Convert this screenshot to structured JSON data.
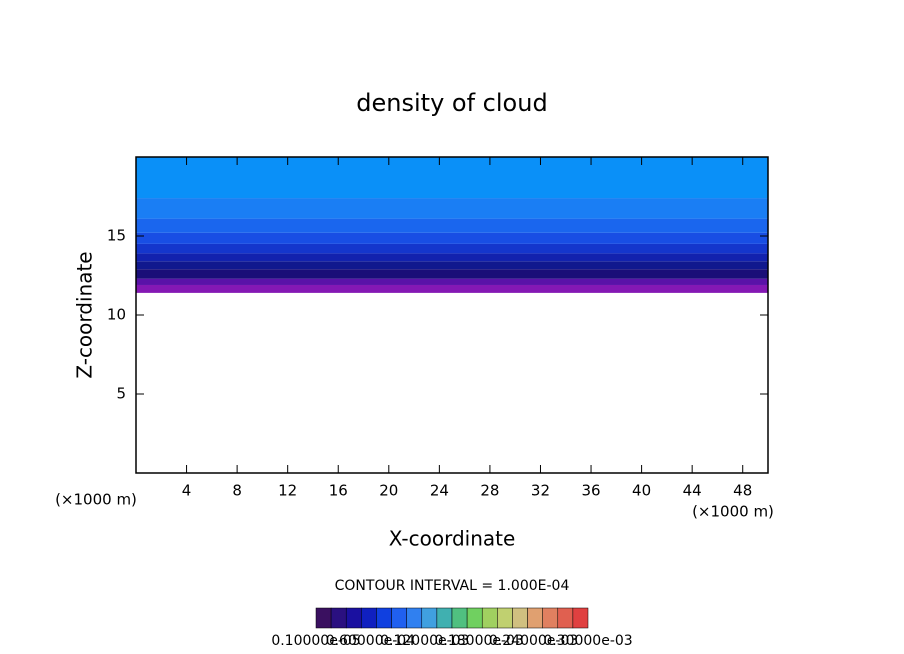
{
  "chart_data": {
    "type": "layered_contour",
    "title": "density of cloud",
    "xlabel": "X-coordinate",
    "ylabel": "Z-coordinate",
    "x_unit": "(×1000 m)",
    "y_unit": "(×1000 m)",
    "xlim": [
      0,
      50
    ],
    "ylim": [
      0,
      20
    ],
    "xticks": [
      4,
      8,
      12,
      16,
      20,
      24,
      28,
      32,
      36,
      40,
      44,
      48
    ],
    "yticks": [
      5,
      10,
      15
    ],
    "layers": [
      {
        "z": 11.4,
        "color": "#8418b4"
      },
      {
        "z": 11.9,
        "color": "#5a12a8"
      },
      {
        "z": 12.3,
        "color": "#1a0e78"
      },
      {
        "z": 12.9,
        "color": "#10188e"
      },
      {
        "z": 13.4,
        "color": "#1222ae"
      },
      {
        "z": 13.9,
        "color": "#1436cc"
      },
      {
        "z": 14.5,
        "color": "#184ee4"
      },
      {
        "z": 15.2,
        "color": "#1a66ee"
      },
      {
        "z": 16.1,
        "color": "#1a7ef4"
      },
      {
        "z": 17.4,
        "color": "#0a90f8"
      }
    ],
    "contour_interval": "CONTOUR INTERVAL = 1.000E-04",
    "colorbar": {
      "colors": [
        "#3a1060",
        "#2a1080",
        "#1a10a0",
        "#1020c0",
        "#1040e0",
        "#2060f0",
        "#3080f0",
        "#40a0e0",
        "#40b0b0",
        "#50c080",
        "#70d060",
        "#a0d060",
        "#c0d070",
        "#d0c080",
        "#e0a070",
        "#e08060",
        "#e06050",
        "#e04040"
      ],
      "labels": [
        "0.10000e-05",
        "0.60000e-04",
        "0.12000e-03",
        "0.18000e-03",
        "0.24000e-03",
        "0.30000e-03"
      ]
    }
  }
}
